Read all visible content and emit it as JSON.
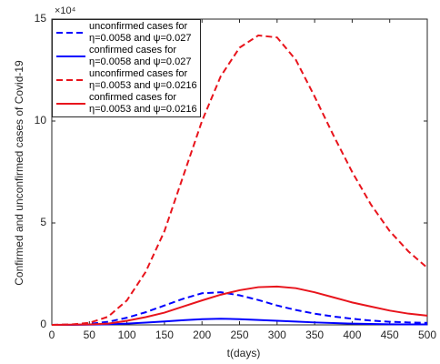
{
  "chart_data": {
    "type": "line",
    "y_multiplier": "×10⁴",
    "xlabel": "t(days)",
    "ylabel": "Confirmed and unconfirmed cases of Covid-19",
    "x": [
      0,
      25,
      50,
      75,
      100,
      125,
      150,
      175,
      200,
      225,
      250,
      275,
      300,
      325,
      350,
      375,
      400,
      425,
      450,
      475,
      500
    ],
    "series": [
      {
        "name": "unconfirmed cases for\nη=0.0058 and ψ=0.027",
        "color": "#0000ff",
        "dashed": true,
        "values": [
          0,
          0.01,
          0.05,
          0.15,
          0.35,
          0.62,
          0.95,
          1.28,
          1.55,
          1.6,
          1.45,
          1.22,
          0.95,
          0.73,
          0.55,
          0.41,
          0.3,
          0.21,
          0.15,
          0.12,
          0.1
        ]
      },
      {
        "name": "confirmed cases for\nη=0.0058 and ψ=0.027",
        "color": "#0000ff",
        "dashed": false,
        "values": [
          0,
          0,
          0.01,
          0.03,
          0.06,
          0.11,
          0.17,
          0.23,
          0.28,
          0.3,
          0.28,
          0.24,
          0.2,
          0.16,
          0.12,
          0.09,
          0.06,
          0.045,
          0.03,
          0.025,
          0.02
        ]
      },
      {
        "name": "unconfirmed cases for\nη=0.0053 and ψ=0.0216",
        "color": "#e8141c",
        "dashed": true,
        "values": [
          0,
          0.02,
          0.1,
          0.4,
          1.2,
          2.6,
          4.6,
          7.3,
          10,
          12.2,
          13.6,
          14.2,
          14.1,
          13.0,
          11.2,
          9.3,
          7.5,
          5.9,
          4.6,
          3.6,
          2.8
        ]
      },
      {
        "name": "confirmed cases for\nη=0.0053 and ψ=0.0216",
        "color": "#e8141c",
        "dashed": false,
        "values": [
          0,
          0.01,
          0.02,
          0.06,
          0.2,
          0.38,
          0.6,
          0.9,
          1.2,
          1.48,
          1.7,
          1.85,
          1.88,
          1.8,
          1.6,
          1.35,
          1.1,
          0.9,
          0.7,
          0.55,
          0.45
        ]
      }
    ],
    "xlim": [
      0,
      500
    ],
    "xticks": [
      0,
      50,
      100,
      150,
      200,
      250,
      300,
      350,
      400,
      450,
      500
    ],
    "ylim": [
      0,
      15
    ],
    "yticks": [
      0,
      5,
      10,
      15
    ],
    "legend": "top-left"
  }
}
